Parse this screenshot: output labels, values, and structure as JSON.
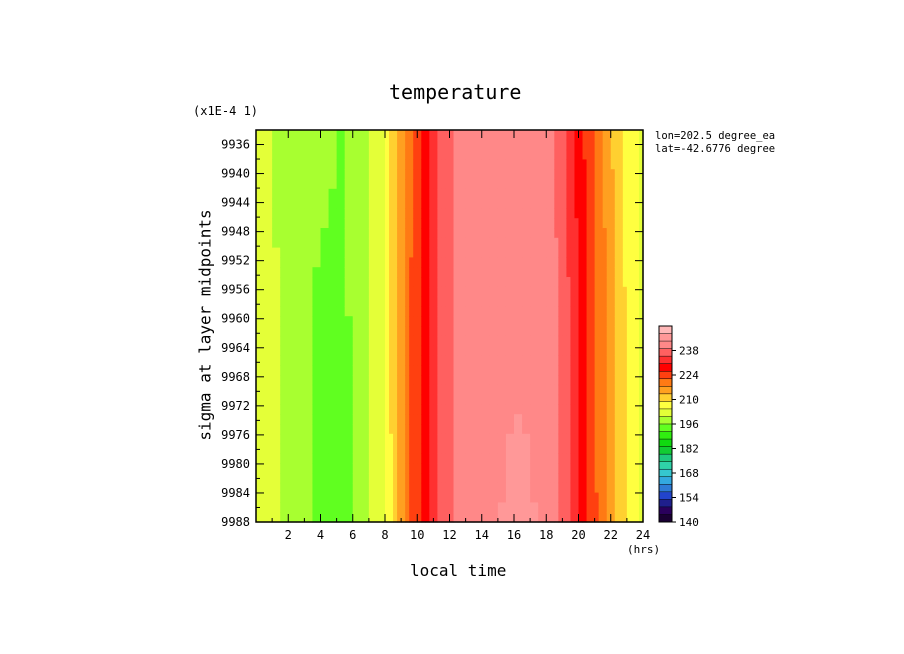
{
  "chart_data": {
    "type": "heatmap",
    "title": "temperature",
    "scale_note": "(x1E-4 1)",
    "annotations": [
      "lon=202.5 degree_ea",
      "lat=-42.6776 degree"
    ],
    "xlabel": "local time",
    "xunit": "(hrs)",
    "ylabel": "sigma at layer midpoints",
    "xlim": [
      0,
      24
    ],
    "ylim": [
      9988,
      9934
    ],
    "x_ticks": [
      2,
      4,
      6,
      8,
      10,
      12,
      14,
      16,
      18,
      20,
      22,
      24
    ],
    "y_ticks": [
      9936,
      9940,
      9944,
      9948,
      9952,
      9956,
      9960,
      9964,
      9968,
      9972,
      9976,
      9980,
      9984,
      9988
    ],
    "colorbar": {
      "levels": [
        140,
        154,
        168,
        182,
        196,
        210,
        224,
        238
      ],
      "min": 140,
      "max": 252,
      "colors": [
        "#1a0033",
        "#2a005c",
        "#1f1f8c",
        "#2244cc",
        "#2e7bd6",
        "#33a9e0",
        "#35c7cf",
        "#2fd2a8",
        "#1fc97e",
        "#12cc33",
        "#10d910",
        "#30ee10",
        "#60ff20",
        "#a8ff30",
        "#e4ff38",
        "#ffff40",
        "#ffd030",
        "#ffa020",
        "#ff7a14",
        "#ff4010",
        "#ff0000",
        "#ff3030",
        "#ff6060",
        "#ff8888",
        "#ff9898",
        "#ffb8b8"
      ]
    },
    "time_hours": [
      0.0,
      0.5,
      1.0,
      1.5,
      2.0,
      2.5,
      3.0,
      3.5,
      4.0,
      4.5,
      5.0,
      5.5,
      6.0,
      6.5,
      7.0,
      7.5,
      8.0,
      8.25,
      8.5,
      8.75,
      9.0,
      9.25,
      9.5,
      9.75,
      10.0,
      10.25,
      10.5,
      10.75,
      11.0,
      11.25,
      11.5,
      11.75,
      12.0,
      12.25,
      12.5,
      12.75,
      13.0,
      13.5,
      14.0,
      14.5,
      15.0,
      15.5,
      16.0,
      16.5,
      17.0,
      17.5,
      18.0,
      18.25,
      18.5,
      18.75,
      19.0,
      19.25,
      19.5,
      19.75,
      20.0,
      20.25,
      20.5,
      20.75,
      21.0,
      21.25,
      21.5,
      21.75,
      22.0,
      22.25,
      22.5,
      22.75,
      23.0,
      23.25,
      23.5,
      23.75,
      24.0
    ],
    "sigma_levels": [
      9934,
      9960,
      9988
    ],
    "temperature": [
      [
        201,
        201,
        200,
        200,
        199,
        199,
        198,
        198,
        197,
        197,
        196,
        196,
        196,
        198,
        200,
        202,
        206,
        208,
        211,
        214,
        216,
        218,
        220,
        223,
        225,
        227,
        229,
        231,
        233,
        234,
        236,
        237,
        238,
        239,
        240,
        241,
        241,
        242,
        242,
        242,
        242,
        242,
        242,
        242,
        242,
        242,
        241,
        240,
        239,
        238,
        237,
        235,
        233,
        231,
        229,
        227,
        225,
        224,
        222,
        220,
        218,
        216,
        214,
        212,
        210,
        209,
        208,
        207,
        206,
        205,
        204
      ],
      [
        202,
        201,
        201,
        200,
        199,
        198,
        197,
        196,
        195,
        195,
        195,
        196,
        196,
        198,
        200,
        202,
        205,
        208,
        211,
        214,
        216,
        218,
        221,
        223,
        225,
        227,
        229,
        231,
        233,
        235,
        236,
        237,
        238,
        239,
        240,
        241,
        241,
        242,
        242,
        242,
        242,
        242,
        242,
        242,
        242,
        242,
        242,
        241,
        240,
        239,
        238,
        236,
        234,
        232,
        230,
        228,
        226,
        224,
        222,
        220,
        219,
        217,
        215,
        213,
        211,
        210,
        208,
        207,
        206,
        205,
        204
      ],
      [
        202,
        202,
        201,
        200,
        199,
        198,
        197,
        195,
        194,
        194,
        194,
        195,
        196,
        198,
        200,
        202,
        205,
        207,
        210,
        213,
        216,
        218,
        221,
        223,
        225,
        227,
        229,
        231,
        233,
        235,
        236,
        237,
        238,
        239,
        240,
        241,
        242,
        242,
        242,
        243,
        243,
        244,
        245,
        245,
        244,
        243,
        242,
        241,
        240,
        239,
        238,
        237,
        235,
        233,
        231,
        229,
        227,
        225,
        223,
        221,
        219,
        217,
        215,
        213,
        212,
        210,
        209,
        207,
        206,
        205,
        203
      ]
    ]
  }
}
